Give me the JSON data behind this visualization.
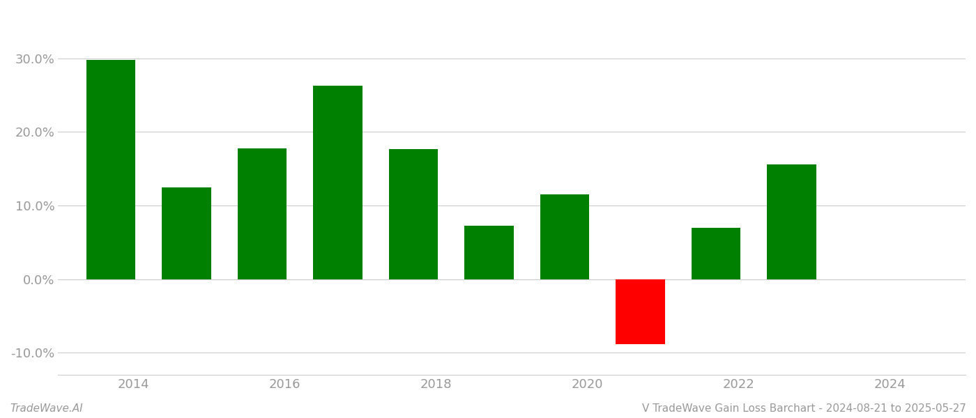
{
  "bar_positions": [
    2013.7,
    2014.7,
    2015.7,
    2016.7,
    2017.7,
    2018.7,
    2019.7,
    2020.7,
    2021.7,
    2022.7,
    2023.7
  ],
  "values": [
    0.298,
    0.125,
    0.178,
    0.263,
    0.177,
    0.073,
    0.115,
    -0.088,
    0.07,
    0.156,
    0.0
  ],
  "bar_width": 0.65,
  "green_color": "#008000",
  "red_color": "#ff0000",
  "background_color": "#ffffff",
  "grid_color": "#cccccc",
  "tick_color": "#999999",
  "footer_left": "TradeWave.AI",
  "footer_right": "V TradeWave Gain Loss Barchart - 2024-08-21 to 2025-05-27",
  "ylim": [
    -0.13,
    0.365
  ],
  "yticks": [
    -0.1,
    0.0,
    0.1,
    0.2,
    0.3
  ],
  "ytick_labels": [
    "-10.0%",
    "0.0%",
    "10.0%",
    "20.0%",
    "30.0%"
  ],
  "xtick_positions": [
    2014,
    2016,
    2018,
    2020,
    2022,
    2024
  ],
  "xtick_labels": [
    "2014",
    "2016",
    "2018",
    "2020",
    "2022",
    "2024"
  ],
  "xlim": [
    2013.0,
    2025.0
  ],
  "figsize": [
    14.0,
    6.0
  ],
  "dpi": 100
}
